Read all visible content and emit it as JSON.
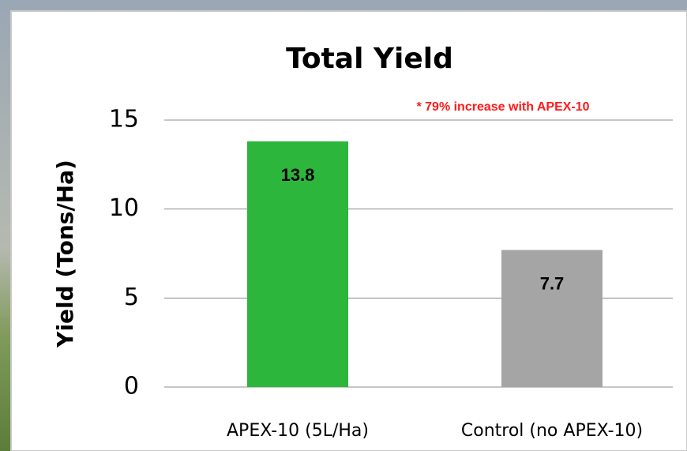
{
  "chart_data": {
    "type": "bar",
    "title": "Total Yield",
    "annotation": "* 79% increase with APEX-10",
    "ylabel": "Yield (Tons/Ha)",
    "categories": [
      "APEX-10 (5L/Ha)",
      "Control (no APEX-10)"
    ],
    "values": [
      13.8,
      7.7
    ],
    "colors": [
      "#2db63c",
      "#a5a5a5"
    ],
    "ylim": [
      0,
      15
    ],
    "yticks": [
      0,
      5,
      10,
      15
    ],
    "grid": true
  }
}
